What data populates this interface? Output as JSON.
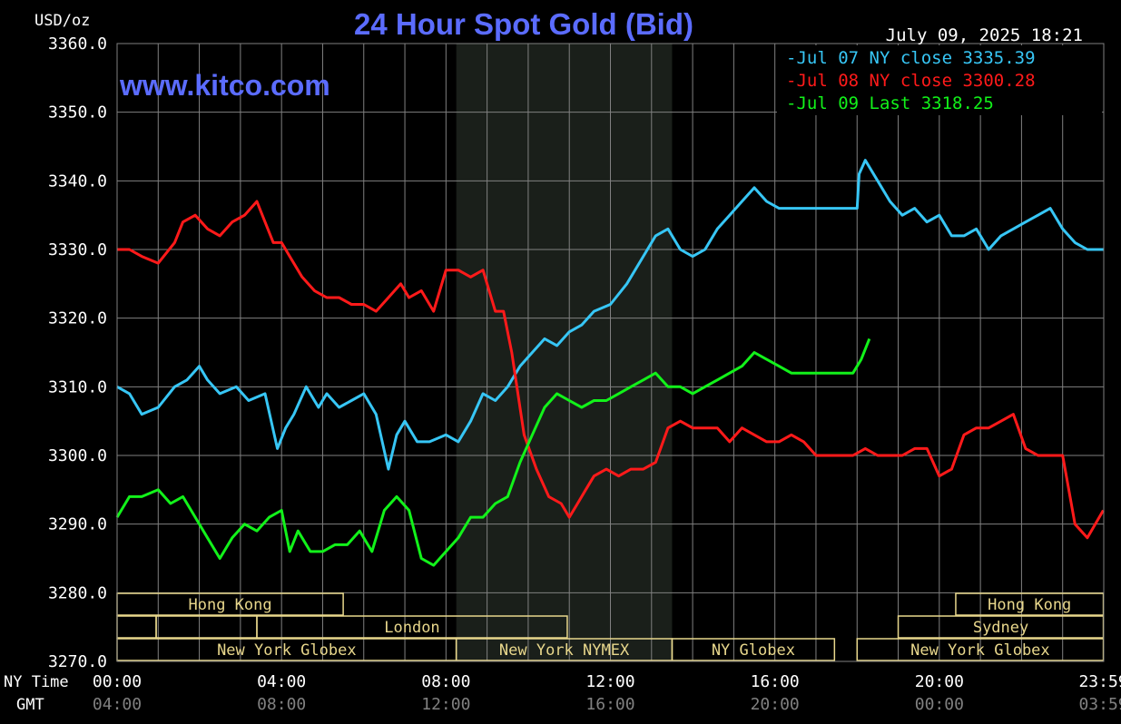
{
  "header": {
    "units": "USD/oz",
    "title": "24 Hour Spot Gold (Bid)",
    "timestamp": "July 09, 2025 18:21",
    "watermark": "www.kitco.com"
  },
  "colors": {
    "background": "#000000",
    "grid": "#808080",
    "title": "#5b6cff",
    "text": "#ffffff",
    "muted": "#808080",
    "session_shade": "#1a1f1a",
    "market_bar": "#e8d78c",
    "jul07": "#37c6f5",
    "jul08": "#ff1a1a",
    "jul09": "#12f21a"
  },
  "legend": [
    {
      "label": "Jul 07 NY close 3335.39",
      "color": "#37c6f5"
    },
    {
      "label": "Jul 08 NY close 3300.28",
      "color": "#ff1a1a"
    },
    {
      "label": "Jul 09 Last 3318.25",
      "color": "#12f21a"
    }
  ],
  "axis": {
    "row_labels": {
      "ny": "NY Time",
      "gmt": "GMT"
    },
    "ny_ticks": [
      "00:00",
      "04:00",
      "08:00",
      "12:00",
      "16:00",
      "20:00",
      "23:59"
    ],
    "gmt_ticks": [
      "04:00",
      "08:00",
      "12:00",
      "16:00",
      "20:00",
      "00:00",
      "03:59"
    ],
    "y_ticks": [
      "3360.0",
      "3350.0",
      "3340.0",
      "3330.0",
      "3320.0",
      "3310.0",
      "3300.0",
      "3290.0",
      "3280.0",
      "3270.0"
    ]
  },
  "markets": [
    {
      "name": "Hong Kong",
      "row": 0,
      "start": 0,
      "end": 5.5
    },
    {
      "name": "Hong Kong",
      "row": 0,
      "start": 20.4,
      "end": 23.99
    },
    {
      "name": "",
      "row": 1,
      "start": 0,
      "end": 0.95
    },
    {
      "name": "",
      "row": 1,
      "start": 0.95,
      "end": 3.4
    },
    {
      "name": "London",
      "row": 1,
      "start": 3.4,
      "end": 10.95
    },
    {
      "name": "Sydney",
      "row": 1,
      "start": 19.0,
      "end": 23.99
    },
    {
      "name": "New York Globex",
      "row": 2,
      "start": 0,
      "end": 8.25
    },
    {
      "name": "New York NYMEX",
      "row": 2,
      "start": 8.25,
      "end": 13.5
    },
    {
      "name": "NY Globex",
      "row": 2,
      "start": 13.5,
      "end": 17.45
    },
    {
      "name": "New York Globex",
      "row": 2,
      "start": 18.0,
      "end": 23.99
    }
  ],
  "chart_data": {
    "type": "line",
    "title": "24 Hour Spot Gold (Bid)",
    "ylabel": "USD/oz",
    "xlabel": "NY Time",
    "xlim": [
      0,
      24
    ],
    "ylim": [
      3270,
      3360
    ],
    "shaded_session": [
      8.25,
      13.5
    ],
    "grid": true,
    "legend_position": "top-right",
    "series": [
      {
        "name": "Jul 07 NY close 3335.39",
        "color": "#37c6f5",
        "x": [
          0,
          0.3,
          0.6,
          1.0,
          1.4,
          1.7,
          2.0,
          2.2,
          2.5,
          2.9,
          3.2,
          3.6,
          3.9,
          4.1,
          4.3,
          4.6,
          4.9,
          5.1,
          5.4,
          5.7,
          6.0,
          6.3,
          6.6,
          6.8,
          7.0,
          7.3,
          7.6,
          8.0,
          8.3,
          8.6,
          8.9,
          9.2,
          9.5,
          9.8,
          10.1,
          10.4,
          10.7,
          11.0,
          11.3,
          11.6,
          12.0,
          12.4,
          12.8,
          13.1,
          13.4,
          13.7,
          14.0,
          14.3,
          14.6,
          14.9,
          15.2,
          15.5,
          15.8,
          16.1,
          16.4,
          16.8,
          17.2,
          17.6,
          18.0,
          18.05,
          18.2,
          18.5,
          18.8,
          19.1,
          19.4,
          19.7,
          20.0,
          20.3,
          20.6,
          20.9,
          21.2,
          21.5,
          21.8,
          22.1,
          22.4,
          22.7,
          23.0,
          23.3,
          23.6,
          23.99
        ],
        "values": [
          3310,
          3309,
          3306,
          3307,
          3310,
          3311,
          3313,
          3311,
          3309,
          3310,
          3308,
          3309,
          3301,
          3304,
          3306,
          3310,
          3307,
          3309,
          3307,
          3308,
          3309,
          3306,
          3298,
          3303,
          3305,
          3302,
          3302,
          3303,
          3302,
          3305,
          3309,
          3308,
          3310,
          3313,
          3315,
          3317,
          3316,
          3318,
          3319,
          3321,
          3322,
          3325,
          3329,
          3332,
          3333,
          3330,
          3329,
          3330,
          3333,
          3335,
          3337,
          3339,
          3337,
          3336,
          3336,
          3336,
          3336,
          3336,
          3336,
          3341,
          3343,
          3340,
          3337,
          3335,
          3336,
          3334,
          3335,
          3332,
          3332,
          3333,
          3330,
          3332,
          3333,
          3334,
          3335,
          3336,
          3333,
          3331,
          3330,
          3330
        ]
      },
      {
        "name": "Jul 08 NY close 3300.28",
        "color": "#ff1a1a",
        "x": [
          0,
          0.3,
          0.6,
          1.0,
          1.4,
          1.6,
          1.9,
          2.2,
          2.5,
          2.8,
          3.1,
          3.4,
          3.6,
          3.8,
          4.0,
          4.2,
          4.5,
          4.8,
          5.1,
          5.4,
          5.7,
          6.0,
          6.3,
          6.6,
          6.9,
          7.1,
          7.4,
          7.7,
          8.0,
          8.3,
          8.6,
          8.9,
          9.2,
          9.4,
          9.6,
          9.9,
          10.2,
          10.5,
          10.8,
          11.0,
          11.2,
          11.4,
          11.6,
          11.9,
          12.2,
          12.5,
          12.8,
          13.1,
          13.4,
          13.7,
          14.0,
          14.3,
          14.6,
          14.9,
          15.2,
          15.5,
          15.8,
          16.1,
          16.4,
          16.7,
          17.0,
          17.3,
          17.6,
          17.9,
          18.2,
          18.5,
          18.8,
          19.1,
          19.4,
          19.7,
          20.0,
          20.3,
          20.6,
          20.9,
          21.2,
          21.5,
          21.8,
          22.1,
          22.4,
          22.7,
          23.0,
          23.3,
          23.6,
          23.99
        ],
        "values": [
          3330,
          3330,
          3329,
          3328,
          3331,
          3334,
          3335,
          3333,
          3332,
          3334,
          3335,
          3337,
          3334,
          3331,
          3331,
          3329,
          3326,
          3324,
          3323,
          3323,
          3322,
          3322,
          3321,
          3323,
          3325,
          3323,
          3324,
          3321,
          3327,
          3327,
          3326,
          3327,
          3321,
          3321,
          3315,
          3303,
          3298,
          3294,
          3293,
          3291,
          3293,
          3295,
          3297,
          3298,
          3297,
          3298,
          3298,
          3299,
          3304,
          3305,
          3304,
          3304,
          3304,
          3302,
          3304,
          3303,
          3302,
          3302,
          3303,
          3302,
          3300,
          3300,
          3300,
          3300,
          3301,
          3300,
          3300,
          3300,
          3301,
          3301,
          3297,
          3298,
          3303,
          3304,
          3304,
          3305,
          3306,
          3301,
          3300,
          3300,
          3300,
          3290,
          3288,
          3292
        ]
      },
      {
        "name": "Jul 09 Last 3318.25",
        "color": "#12f21a",
        "x": [
          0,
          0.3,
          0.6,
          1.0,
          1.3,
          1.6,
          1.9,
          2.2,
          2.5,
          2.8,
          3.1,
          3.4,
          3.7,
          4.0,
          4.2,
          4.4,
          4.7,
          5.0,
          5.3,
          5.6,
          5.9,
          6.2,
          6.5,
          6.8,
          7.1,
          7.4,
          7.7,
          8.0,
          8.3,
          8.6,
          8.9,
          9.2,
          9.5,
          9.8,
          10.1,
          10.4,
          10.7,
          11.0,
          11.3,
          11.6,
          11.9,
          12.2,
          12.5,
          12.8,
          13.1,
          13.4,
          13.7,
          14.0,
          14.3,
          14.6,
          14.9,
          15.2,
          15.5,
          15.8,
          16.1,
          16.4,
          16.7,
          17.0,
          17.3,
          17.6,
          17.9,
          18.1,
          18.3
        ],
        "values": [
          3291,
          3294,
          3294,
          3295,
          3293,
          3294,
          3291,
          3288,
          3285,
          3288,
          3290,
          3289,
          3291,
          3292,
          3286,
          3289,
          3286,
          3286,
          3287,
          3287,
          3289,
          3286,
          3292,
          3294,
          3292,
          3285,
          3284,
          3286,
          3288,
          3291,
          3291,
          3293,
          3294,
          3299,
          3303,
          3307,
          3309,
          3308,
          3307,
          3308,
          3308,
          3309,
          3310,
          3311,
          3312,
          3310,
          3310,
          3309,
          3310,
          3311,
          3312,
          3313,
          3315,
          3314,
          3313,
          3312,
          3312,
          3312,
          3312,
          3312,
          3312,
          3314,
          3317
        ]
      }
    ]
  }
}
